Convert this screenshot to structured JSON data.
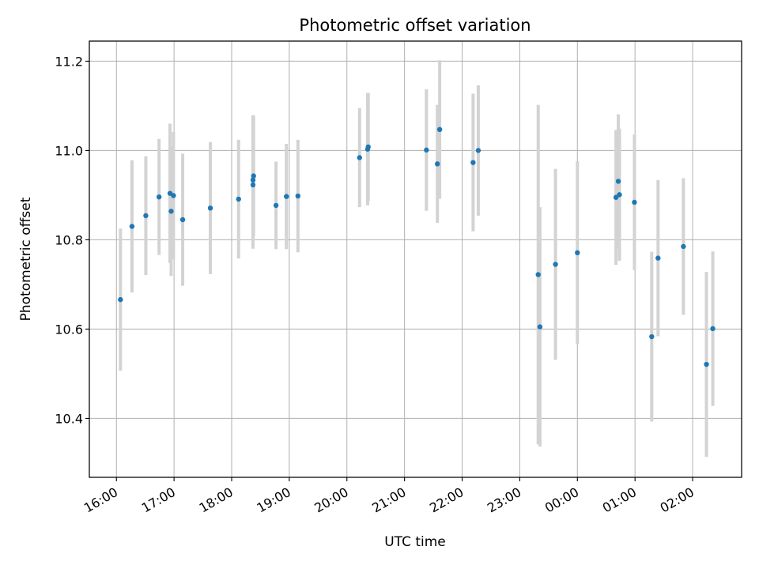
{
  "chart_data": {
    "type": "scatter",
    "title": "Photometric offset variation",
    "xlabel": "UTC time",
    "ylabel": "Photometric offset",
    "x_unit": "hours (UTC, continuing past midnight)",
    "xlim": [
      15.53,
      26.85
    ],
    "ylim": [
      10.268,
      11.245
    ],
    "grid": true,
    "x_ticks": [
      {
        "value": 16,
        "label": "16:00"
      },
      {
        "value": 17,
        "label": "17:00"
      },
      {
        "value": 18,
        "label": "18:00"
      },
      {
        "value": 19,
        "label": "19:00"
      },
      {
        "value": 20,
        "label": "20:00"
      },
      {
        "value": 21,
        "label": "21:00"
      },
      {
        "value": 22,
        "label": "22:00"
      },
      {
        "value": 23,
        "label": "23:00"
      },
      {
        "value": 24,
        "label": "00:00"
      },
      {
        "value": 25,
        "label": "01:00"
      },
      {
        "value": 26,
        "label": "02:00"
      }
    ],
    "y_ticks": [
      {
        "value": 10.4,
        "label": "10.4"
      },
      {
        "value": 10.6,
        "label": "10.6"
      },
      {
        "value": 10.8,
        "label": "10.8"
      },
      {
        "value": 11.0,
        "label": "11.0"
      },
      {
        "value": 11.2,
        "label": "11.2"
      }
    ],
    "colors": {
      "points": "#1f77b4",
      "error_bars": "#d3d3d3",
      "grid": "#b0b0b0",
      "axes": "#000000"
    },
    "points": [
      {
        "x": 16.07,
        "y": 10.666,
        "err": 0.159
      },
      {
        "x": 16.27,
        "y": 10.83,
        "err": 0.148
      },
      {
        "x": 16.51,
        "y": 10.854,
        "err": 0.133
      },
      {
        "x": 16.74,
        "y": 10.896,
        "err": 0.13
      },
      {
        "x": 16.93,
        "y": 10.904,
        "err": 0.156
      },
      {
        "x": 16.95,
        "y": 10.864,
        "err": 0.145
      },
      {
        "x": 16.99,
        "y": 10.899,
        "err": 0.143
      },
      {
        "x": 17.15,
        "y": 10.845,
        "err": 0.148
      },
      {
        "x": 17.63,
        "y": 10.871,
        "err": 0.148
      },
      {
        "x": 18.12,
        "y": 10.891,
        "err": 0.133
      },
      {
        "x": 18.37,
        "y": 10.923,
        "err": 0.143
      },
      {
        "x": 18.37,
        "y": 10.934,
        "err": 0.145
      },
      {
        "x": 18.38,
        "y": 10.943,
        "err": 0.135
      },
      {
        "x": 18.77,
        "y": 10.877,
        "err": 0.098
      },
      {
        "x": 18.95,
        "y": 10.897,
        "err": 0.118
      },
      {
        "x": 19.15,
        "y": 10.898,
        "err": 0.126
      },
      {
        "x": 20.22,
        "y": 10.984,
        "err": 0.111
      },
      {
        "x": 20.36,
        "y": 11.003,
        "err": 0.126
      },
      {
        "x": 20.37,
        "y": 11.008,
        "err": 0.121
      },
      {
        "x": 21.38,
        "y": 11.001,
        "err": 0.136
      },
      {
        "x": 21.57,
        "y": 10.97,
        "err": 0.132
      },
      {
        "x": 21.61,
        "y": 11.047,
        "err": 0.155
      },
      {
        "x": 22.19,
        "y": 10.973,
        "err": 0.154
      },
      {
        "x": 22.28,
        "y": 11.0,
        "err": 0.146
      },
      {
        "x": 23.32,
        "y": 10.722,
        "err": 0.38
      },
      {
        "x": 23.35,
        "y": 10.605,
        "err": 0.268
      },
      {
        "x": 23.62,
        "y": 10.745,
        "err": 0.214
      },
      {
        "x": 24.0,
        "y": 10.771,
        "err": 0.205
      },
      {
        "x": 24.67,
        "y": 10.895,
        "err": 0.151
      },
      {
        "x": 24.71,
        "y": 10.931,
        "err": 0.15
      },
      {
        "x": 24.73,
        "y": 10.901,
        "err": 0.148
      },
      {
        "x": 24.99,
        "y": 10.884,
        "err": 0.152
      },
      {
        "x": 25.29,
        "y": 10.583,
        "err": 0.19
      },
      {
        "x": 25.4,
        "y": 10.759,
        "err": 0.175
      },
      {
        "x": 25.84,
        "y": 10.785,
        "err": 0.153
      },
      {
        "x": 26.24,
        "y": 10.521,
        "err": 0.207
      },
      {
        "x": 26.35,
        "y": 10.601,
        "err": 0.173
      }
    ]
  }
}
